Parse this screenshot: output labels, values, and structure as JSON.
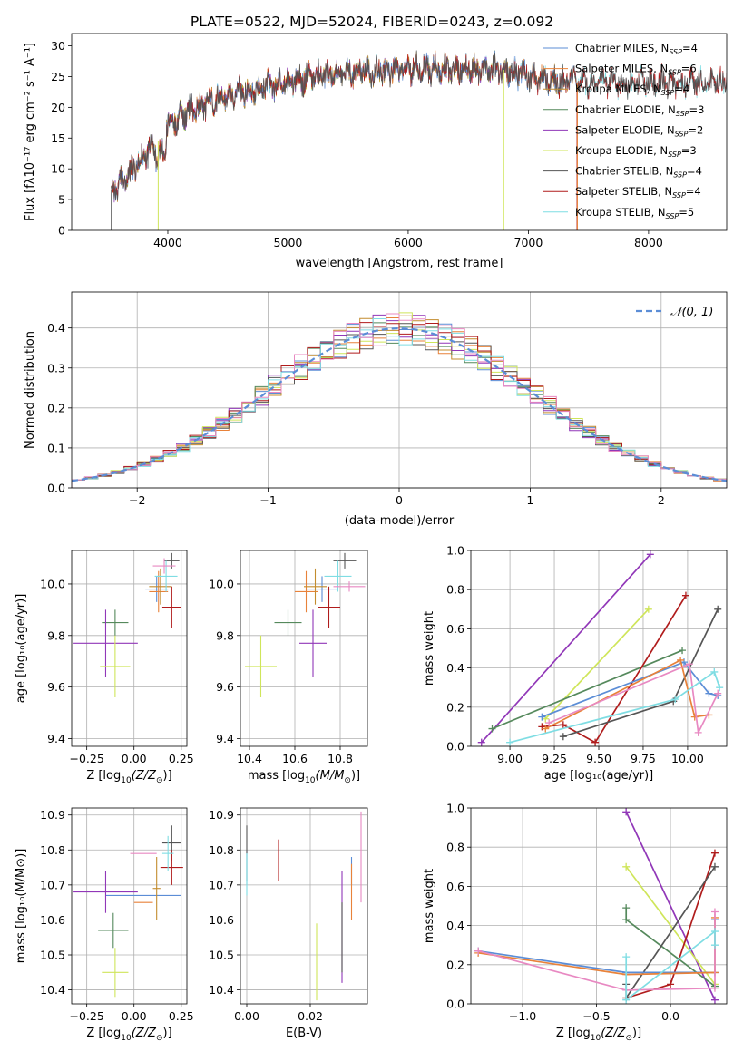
{
  "colors": {
    "chabrier_miles": "#5b8dd6",
    "salpeter_miles": "#e8823a",
    "kroupa_miles": "#c38c2e",
    "chabrier_elodie": "#55895c",
    "salpeter_elodie": "#9137b8",
    "kroupa_elodie": "#cfe55a",
    "chabrier_stelib": "#555555",
    "salpeter_stelib": "#b01c1c",
    "kroupa_stelib": "#7fdde3",
    "pink": "#e889c2",
    "gaussian": "#5b8dd6"
  },
  "chart_data": [
    {
      "type": "line",
      "title": "PLATE=0522, MJD=52024, FIBERID=0243, z=0.092",
      "xlabel": "wavelength [Angstrom, rest frame]",
      "ylabel": "Flux [fλ10⁻¹⁷ erg cm⁻² s⁻¹ A⁻¹]",
      "xlim": [
        3200,
        8650
      ],
      "ylim": [
        0,
        32
      ],
      "xticks": [
        4000,
        5000,
        6000,
        7000,
        8000
      ],
      "yticks": [
        0,
        5,
        10,
        15,
        20,
        25,
        30
      ],
      "continuum": {
        "x": [
          3530,
          3600,
          3700,
          3800,
          3900,
          4000,
          4100,
          4200,
          4400,
          4600,
          4800,
          5000,
          5200,
          5400,
          5600,
          5800,
          6000,
          6200,
          6400,
          6600,
          6800,
          7000,
          7200,
          7400
        ],
        "y": [
          6.5,
          7.5,
          9.5,
          12,
          14,
          17,
          18.5,
          19.5,
          21.5,
          22.5,
          23.5,
          24,
          25,
          25.5,
          26,
          26,
          26.2,
          26.3,
          26.1,
          26.4,
          26.1,
          25.3,
          24.5,
          24
        ]
      },
      "legend_position": "upper-right",
      "series": [
        {
          "name": "Chabrier MILES, N_SSP=4",
          "label_main": "Chabrier MILES, N",
          "label_sub": "SSP",
          "label_tail": "=4",
          "x_end": 7400
        },
        {
          "name": "Salpeter MILES, N_SSP=6",
          "label_main": "Salpeter MILES, N",
          "label_sub": "SSP",
          "label_tail": "=6",
          "x_end": 7400
        },
        {
          "name": "Kroupa MILES, N_SSP=4",
          "label_main": "Kroupa MILES, N",
          "label_sub": "SSP",
          "label_tail": "=4",
          "x_end": 7400
        },
        {
          "name": "Chabrier ELODIE, N_SSP=3",
          "label_main": "Chabrier ELODIE, N",
          "label_sub": "SSP",
          "label_tail": "=3",
          "x_end": 6800
        },
        {
          "name": "Salpeter ELODIE, N_SSP=2",
          "label_main": "Salpeter ELODIE, N",
          "label_sub": "SSP",
          "label_tail": "=2",
          "x_end": 6800
        },
        {
          "name": "Kroupa ELODIE, N_SSP=3",
          "label_main": "Kroupa ELODIE, N",
          "label_sub": "SSP",
          "label_tail": "=3",
          "x_end": 6800
        },
        {
          "name": "Chabrier STELIB, N_SSP=4",
          "label_main": "Chabrier STELIB, N",
          "label_sub": "SSP",
          "label_tail": "=4",
          "x_end": 8650
        },
        {
          "name": "Salpeter STELIB, N_SSP=4",
          "label_main": "Salpeter STELIB, N",
          "label_sub": "SSP",
          "label_tail": "=4",
          "x_end": 8650
        },
        {
          "name": "Kroupa STELIB, N_SSP=5",
          "label_main": "Kroupa STELIB, N",
          "label_sub": "SSP",
          "label_tail": "=5",
          "x_end": 8650
        }
      ]
    },
    {
      "type": "line",
      "xlabel": "(data-model)/error",
      "ylabel": "Normed distribution",
      "xlim": [
        -2.5,
        2.5
      ],
      "ylim": [
        0,
        0.49
      ],
      "xticks": [
        -2,
        -1,
        0,
        1,
        2
      ],
      "yticks": [
        0.0,
        0.1,
        0.2,
        0.3,
        0.4
      ],
      "grid": true,
      "legend_position": "upper-right",
      "gaussian_label": "𝒩(0, 1)",
      "histogram_bins": 50,
      "histogram_range": [
        -2.5,
        2.5
      ],
      "histogram_series_count": 9
    },
    {
      "type": "scatter",
      "xlabel_main": "Z [log",
      "xlabel_sub": "10",
      "xlabel_tail": "(Z/Z",
      "xlabel_sub2": "⊙",
      "xlabel_end": ")]",
      "ylabel": "age  [log₁₀(age/yr)]",
      "xlim": [
        -0.33,
        0.28
      ],
      "ylim": [
        9.37,
        10.13
      ],
      "xticks": [
        -0.25,
        0.0,
        0.25
      ],
      "xtick_labels": [
        "−0.25",
        "0.00",
        "0.25"
      ],
      "yticks": [
        9.4,
        9.6,
        9.8,
        10.0
      ],
      "grid": true,
      "errorbars": [
        {
          "color": "chabrier_miles",
          "x": 0.12,
          "xerr": 0.06,
          "y": 9.98,
          "yerr": 0.05
        },
        {
          "color": "salpeter_miles",
          "x": 0.13,
          "xerr": 0.05,
          "y": 9.97,
          "yerr": 0.08
        },
        {
          "color": "kroupa_miles",
          "x": 0.14,
          "xerr": 0.06,
          "y": 9.99,
          "yerr": 0.07
        },
        {
          "color": "chabrier_elodie",
          "x": -0.1,
          "xerr": 0.07,
          "y": 9.85,
          "yerr": 0.05
        },
        {
          "color": "salpeter_elodie",
          "x": -0.15,
          "xerr": 0.17,
          "y": 9.77,
          "yerr": 0.13
        },
        {
          "color": "kroupa_elodie",
          "x": -0.1,
          "xerr": 0.08,
          "y": 9.68,
          "yerr": 0.12
        },
        {
          "color": "chabrier_stelib",
          "x": 0.2,
          "xerr": 0.04,
          "y": 10.09,
          "yerr": 0.03
        },
        {
          "color": "salpeter_stelib",
          "x": 0.2,
          "xerr": 0.05,
          "y": 9.91,
          "yerr": 0.08
        },
        {
          "color": "kroupa_stelib",
          "x": 0.17,
          "xerr": 0.06,
          "y": 10.03,
          "yerr": 0.06
        },
        {
          "color": "pink",
          "x": 0.16,
          "xerr": 0.06,
          "y": 10.07,
          "yerr": 0.03
        }
      ]
    },
    {
      "type": "scatter",
      "xlabel_main": "mass [log",
      "xlabel_sub": "10",
      "xlabel_tail": "(M/M",
      "xlabel_sub2": "⊙",
      "xlabel_end": ")]",
      "xlim": [
        10.36,
        10.92
      ],
      "ylim": [
        9.37,
        10.13
      ],
      "xticks": [
        10.4,
        10.6,
        10.8
      ],
      "xtick_labels": [
        "10.4",
        "10.6",
        "10.8"
      ],
      "yticks": [
        9.4,
        9.6,
        9.8,
        10.0
      ],
      "grid": true,
      "errorbars": [
        {
          "color": "chabrier_miles",
          "x": 10.72,
          "xerr": 0.07,
          "y": 9.98,
          "yerr": 0.05
        },
        {
          "color": "salpeter_miles",
          "x": 10.65,
          "xerr": 0.05,
          "y": 9.97,
          "yerr": 0.08
        },
        {
          "color": "kroupa_miles",
          "x": 10.69,
          "xerr": 0.05,
          "y": 9.99,
          "yerr": 0.07
        },
        {
          "color": "chabrier_elodie",
          "x": 10.57,
          "xerr": 0.06,
          "y": 9.85,
          "yerr": 0.05
        },
        {
          "color": "salpeter_elodie",
          "x": 10.68,
          "xerr": 0.06,
          "y": 9.77,
          "yerr": 0.13
        },
        {
          "color": "kroupa_elodie",
          "x": 10.45,
          "xerr": 0.07,
          "y": 9.68,
          "yerr": 0.12
        },
        {
          "color": "chabrier_stelib",
          "x": 10.82,
          "xerr": 0.05,
          "y": 10.09,
          "yerr": 0.03
        },
        {
          "color": "salpeter_stelib",
          "x": 10.75,
          "xerr": 0.05,
          "y": 9.91,
          "yerr": 0.08
        },
        {
          "color": "kroupa_stelib",
          "x": 10.79,
          "xerr": 0.06,
          "y": 10.03,
          "yerr": 0.06
        },
        {
          "color": "pink",
          "x": 10.84,
          "xerr": 0.07,
          "y": 9.99,
          "yerr": 0.02
        }
      ]
    },
    {
      "type": "line",
      "xlabel": "age  [log₁₀(age/yr)]",
      "ylabel": "mass weight",
      "xlim": [
        8.78,
        10.22
      ],
      "ylim": [
        0,
        1.0
      ],
      "xticks": [
        9.0,
        9.25,
        9.5,
        9.75,
        10.0
      ],
      "xtick_labels": [
        "9.00",
        "9.25",
        "9.50",
        "9.75",
        "10.00"
      ],
      "yticks": [
        0.0,
        0.2,
        0.4,
        0.6,
        0.8,
        1.0
      ],
      "grid": true,
      "series": [
        {
          "color": "salpeter_elodie",
          "x": [
            8.84,
            9.79
          ],
          "y": [
            0.02,
            0.98
          ]
        },
        {
          "color": "kroupa_elodie",
          "x": [
            9.2,
            9.78
          ],
          "y": [
            0.14,
            0.7
          ]
        },
        {
          "color": "chabrier_elodie",
          "x": [
            8.9,
            9.97
          ],
          "y": [
            0.09,
            0.49
          ]
        },
        {
          "color": "salpeter_stelib",
          "x": [
            9.18,
            9.3,
            9.48,
            9.99
          ],
          "y": [
            0.1,
            0.11,
            0.02,
            0.77
          ]
        },
        {
          "color": "chabrier_stelib",
          "x": [
            9.3,
            9.92,
            10.17
          ],
          "y": [
            0.05,
            0.23,
            0.7
          ]
        },
        {
          "color": "chabrier_miles",
          "x": [
            9.18,
            9.98,
            10.12,
            10.17
          ],
          "y": [
            0.15,
            0.43,
            0.27,
            0.26
          ]
        },
        {
          "color": "salpeter_miles",
          "x": [
            9.2,
            9.96,
            10.04,
            10.12
          ],
          "y": [
            0.09,
            0.44,
            0.15,
            0.16
          ]
        },
        {
          "color": "pink",
          "x": [
            9.22,
            10.01,
            10.06,
            10.17
          ],
          "y": [
            0.12,
            0.42,
            0.07,
            0.27
          ]
        },
        {
          "color": "kroupa_stelib",
          "x": [
            9.0,
            9.93,
            10.15,
            10.18
          ],
          "y": [
            0.02,
            0.24,
            0.38,
            0.3
          ]
        }
      ]
    },
    {
      "type": "scatter",
      "xlabel_main": "Z [log",
      "xlabel_sub": "10",
      "xlabel_tail": "(Z/Z",
      "xlabel_sub2": "⊙",
      "xlabel_end": ")]",
      "ylabel": "mass [log₁₀(M/M⊙)]",
      "xlim": [
        -0.33,
        0.28
      ],
      "ylim": [
        10.36,
        10.92
      ],
      "xticks": [
        -0.25,
        0.0,
        0.25
      ],
      "xtick_labels": [
        "−0.25",
        "0.00",
        "0.25"
      ],
      "yticks": [
        10.4,
        10.5,
        10.6,
        10.7,
        10.8,
        10.9
      ],
      "grid": true,
      "errorbars": [
        {
          "color": "chabrier_miles",
          "x": 0.05,
          "xerr": 0.2,
          "y": 10.67,
          "yerr": 0.0
        },
        {
          "color": "salpeter_miles",
          "x": 0.05,
          "xerr": 0.05,
          "y": 10.65,
          "yerr": 0.0
        },
        {
          "color": "kroupa_miles",
          "x": 0.12,
          "xerr": 0.02,
          "y": 10.69,
          "yerr": 0.09
        },
        {
          "color": "chabrier_elodie",
          "x": -0.11,
          "xerr": 0.08,
          "y": 10.57,
          "yerr": 0.05
        },
        {
          "color": "salpeter_elodie",
          "x": -0.15,
          "xerr": 0.17,
          "y": 10.68,
          "yerr": 0.06
        },
        {
          "color": "kroupa_elodie",
          "x": -0.1,
          "xerr": 0.07,
          "y": 10.45,
          "yerr": 0.07
        },
        {
          "color": "chabrier_stelib",
          "x": 0.2,
          "xerr": 0.05,
          "y": 10.82,
          "yerr": 0.05
        },
        {
          "color": "salpeter_stelib",
          "x": 0.2,
          "xerr": 0.06,
          "y": 10.75,
          "yerr": 0.05
        },
        {
          "color": "kroupa_stelib",
          "x": 0.18,
          "xerr": 0.03,
          "y": 10.79,
          "yerr": 0.05
        },
        {
          "color": "pink",
          "x": 0.05,
          "xerr": 0.07,
          "y": 10.79,
          "yerr": 0.0
        }
      ]
    },
    {
      "type": "scatter",
      "xlabel": "E(B-V)",
      "xlim": [
        -0.002,
        0.038
      ],
      "ylim": [
        10.36,
        10.92
      ],
      "xticks": [
        0.0,
        0.02
      ],
      "xtick_labels": [
        "0.00",
        "0.02"
      ],
      "yticks": [
        10.4,
        10.5,
        10.6,
        10.7,
        10.8,
        10.9
      ],
      "grid": true,
      "errorbars": [
        {
          "color": "chabrier_miles",
          "x": 0.0,
          "y": 10.75,
          "yerr": 0.05
        },
        {
          "color": "chabrier_stelib",
          "x": 0.0,
          "y": 10.79,
          "yerr": 0.08
        },
        {
          "color": "kroupa_stelib",
          "x": 0.0,
          "y": 10.73,
          "yerr": 0.06
        },
        {
          "color": "salpeter_stelib",
          "x": 0.01,
          "y": 10.77,
          "yerr": 0.06
        },
        {
          "color": "kroupa_elodie",
          "x": 0.022,
          "y": 10.48,
          "yerr": 0.11
        },
        {
          "color": "salpeter_elodie",
          "x": 0.03,
          "y": 10.58,
          "yerr": 0.16
        },
        {
          "color": "chabrier_stelib",
          "x": 0.03,
          "y": 10.55,
          "yerr": 0.1
        },
        {
          "color": "chabrier_miles",
          "x": 0.033,
          "y": 10.74,
          "yerr": 0.04
        },
        {
          "color": "salpeter_miles",
          "x": 0.033,
          "y": 10.68,
          "yerr": 0.08
        },
        {
          "color": "pink",
          "x": 0.036,
          "y": 10.78,
          "yerr": 0.13
        }
      ]
    },
    {
      "type": "line",
      "xlabel_main": "Z [log",
      "xlabel_sub": "10",
      "xlabel_tail": "(Z/Z",
      "xlabel_sub2": "⊙",
      "xlabel_end": ")]",
      "ylabel": "mass weight",
      "xlim": [
        -1.35,
        0.38
      ],
      "ylim": [
        0,
        1.0
      ],
      "xticks": [
        -1.0,
        -0.5,
        0.0
      ],
      "xtick_labels": [
        "−1.0",
        "−0.5",
        "0.0"
      ],
      "yticks": [
        0.0,
        0.2,
        0.4,
        0.6,
        0.8,
        1.0
      ],
      "grid": true,
      "series": [
        {
          "color": "salpeter_elodie",
          "x": [
            -0.3,
            0.3
          ],
          "y": [
            0.98,
            0.02
          ]
        },
        {
          "color": "kroupa_elodie",
          "x": [
            -0.3,
            0.3
          ],
          "y": [
            0.7,
            0.1
          ]
        },
        {
          "color": "chabrier_elodie",
          "x": [
            -0.3,
            -0.3,
            0.3
          ],
          "y": [
            0.49,
            0.43,
            0.09
          ]
        },
        {
          "color": "salpeter_stelib",
          "x": [
            -0.3,
            0.0,
            0.3
          ],
          "y": [
            0.03,
            0.1,
            0.77
          ]
        },
        {
          "color": "chabrier_stelib",
          "x": [
            -0.3,
            -0.3,
            0.3
          ],
          "y": [
            0.1,
            0.03,
            0.7
          ]
        },
        {
          "color": "chabrier_miles",
          "x": [
            -1.3,
            -0.3,
            0.3,
            0.3
          ],
          "y": [
            0.27,
            0.16,
            0.16,
            0.43
          ]
        },
        {
          "color": "salpeter_miles",
          "x": [
            -1.3,
            -0.3,
            0.3,
            0.3
          ],
          "y": [
            0.26,
            0.15,
            0.16,
            0.44
          ]
        },
        {
          "color": "pink",
          "x": [
            -1.3,
            -0.3,
            0.3,
            0.3
          ],
          "y": [
            0.27,
            0.07,
            0.08,
            0.47
          ]
        },
        {
          "color": "kroupa_stelib",
          "x": [
            -0.3,
            -0.3,
            0.3,
            0.3
          ],
          "y": [
            0.24,
            0.02,
            0.37,
            0.3
          ]
        }
      ]
    }
  ]
}
